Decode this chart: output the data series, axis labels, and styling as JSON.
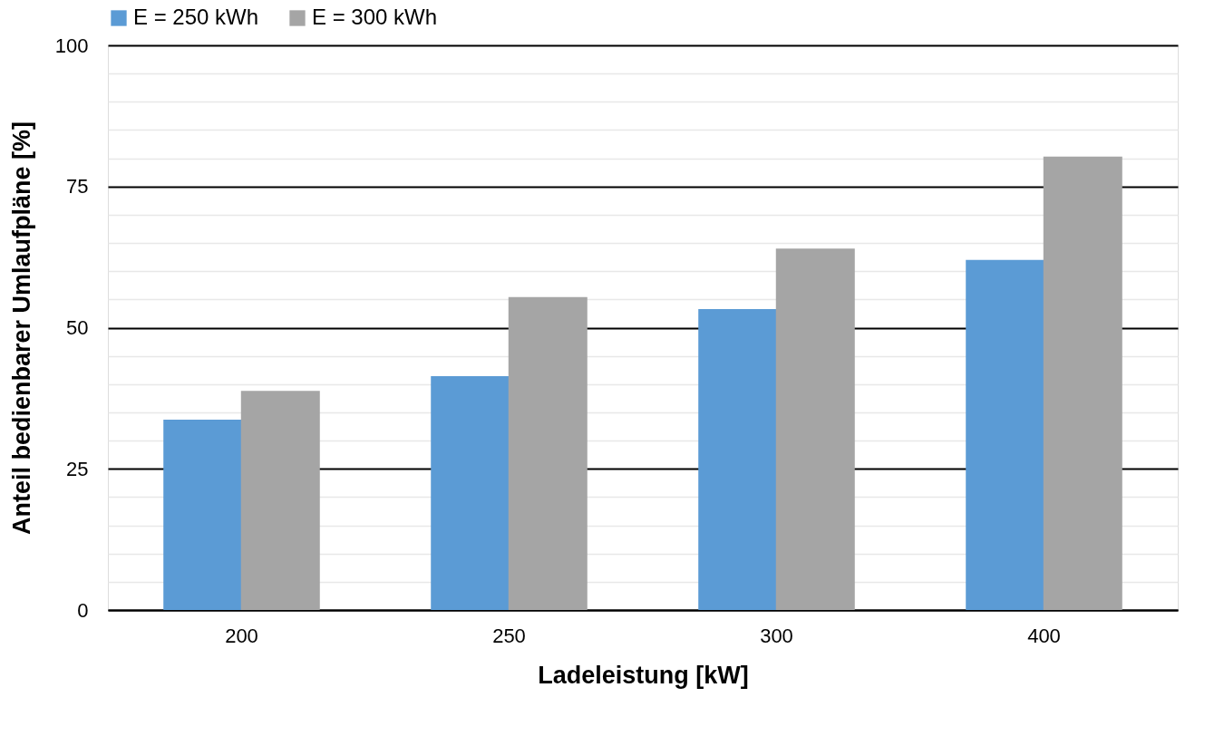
{
  "chart_data": {
    "type": "bar",
    "xlabel": "Ladeleistung [kW]",
    "ylabel": "Anteil bedienbarer Umlaufpläne [%]",
    "categories": [
      "200",
      "250",
      "300",
      "400"
    ],
    "series": [
      {
        "name": "E = 250 kWh",
        "color": "#5b9bd5",
        "values": [
          33.7,
          41.4,
          53.3,
          62.0
        ]
      },
      {
        "name": "E = 300 kWh",
        "color": "#a5a5a5",
        "values": [
          38.8,
          55.4,
          64.0,
          80.3
        ]
      }
    ],
    "ylim": [
      0,
      100
    ],
    "yticks": [
      0,
      {
        "value": 5,
        "label": null
      },
      {
        "value": 10,
        "label": null
      },
      {
        "value": 15,
        "label": null
      },
      {
        "value": 20,
        "label": null
      },
      25,
      {
        "value": 30,
        "label": null
      },
      {
        "value": 35,
        "label": null
      },
      {
        "value": 40,
        "label": null
      },
      {
        "value": 45,
        "label": null
      },
      50,
      {
        "value": 55,
        "label": null
      },
      {
        "value": 60,
        "label": null
      },
      {
        "value": 65,
        "label": null
      },
      {
        "value": 70,
        "label": null
      },
      75,
      {
        "value": 80,
        "label": null
      },
      {
        "value": 85,
        "label": null
      },
      {
        "value": 90,
        "label": null
      },
      {
        "value": 95,
        "label": null
      },
      100
    ],
    "grid": "y",
    "legend": "top"
  }
}
